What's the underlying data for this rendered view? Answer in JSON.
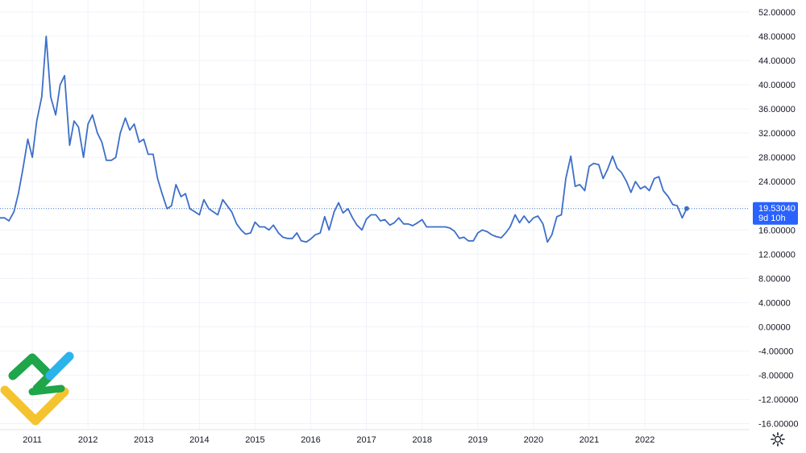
{
  "chart_data": {
    "type": "line",
    "title": "",
    "xlabel": "",
    "ylabel": "",
    "ylim": [
      -17.0,
      54.0
    ],
    "xlim": [
      2010.42,
      2023.88
    ],
    "y_ticks": [
      52,
      48,
      44,
      40,
      36,
      32,
      28,
      24,
      20,
      16,
      12,
      8,
      4,
      0,
      -4,
      -8,
      -12,
      -16
    ],
    "y_tick_labels": [
      "52.00000",
      "48.00000",
      "44.00000",
      "40.00000",
      "36.00000",
      "32.00000",
      "28.00000",
      "24.00000",
      "20.00000",
      "16.00000",
      "12.00000",
      "8.00000",
      "4.00000",
      "0.00000",
      "-4.00000",
      "-8.00000",
      "-12.00000",
      "-16.00000"
    ],
    "x_ticks": [
      2011,
      2012,
      2013,
      2014,
      2015,
      2016,
      2017,
      2018,
      2019,
      2020,
      2021,
      2022
    ],
    "x_tick_labels": [
      "2011",
      "2012",
      "2013",
      "2014",
      "2015",
      "2016",
      "2017",
      "2018",
      "2019",
      "2020",
      "2021",
      "2022"
    ],
    "grid": true,
    "series": [
      {
        "color": "#3d6fc8",
        "x": [
          2010.42,
          2010.5,
          2010.58,
          2010.67,
          2010.75,
          2010.83,
          2010.92,
          2011.0,
          2011.08,
          2011.17,
          2011.25,
          2011.33,
          2011.42,
          2011.5,
          2011.58,
          2011.67,
          2011.75,
          2011.83,
          2011.92,
          2012.0,
          2012.08,
          2012.17,
          2012.25,
          2012.33,
          2012.42,
          2012.5,
          2012.58,
          2012.67,
          2012.75,
          2012.83,
          2012.92,
          2013.0,
          2013.08,
          2013.17,
          2013.25,
          2013.33,
          2013.42,
          2013.5,
          2013.58,
          2013.67,
          2013.75,
          2013.83,
          2013.92,
          2014.0,
          2014.08,
          2014.17,
          2014.25,
          2014.33,
          2014.42,
          2014.5,
          2014.58,
          2014.67,
          2014.75,
          2014.83,
          2014.92,
          2015.0,
          2015.08,
          2015.17,
          2015.25,
          2015.33,
          2015.42,
          2015.5,
          2015.58,
          2015.67,
          2015.75,
          2015.83,
          2015.92,
          2016.0,
          2016.08,
          2016.17,
          2016.25,
          2016.33,
          2016.42,
          2016.5,
          2016.58,
          2016.67,
          2016.75,
          2016.83,
          2016.92,
          2017.0,
          2017.08,
          2017.17,
          2017.25,
          2017.33,
          2017.42,
          2017.5,
          2017.58,
          2017.67,
          2017.75,
          2017.83,
          2017.92,
          2018.0,
          2018.08,
          2018.17,
          2018.25,
          2018.33,
          2018.42,
          2018.5,
          2018.58,
          2018.67,
          2018.75,
          2018.83,
          2018.92,
          2019.0,
          2019.08,
          2019.17,
          2019.25,
          2019.33,
          2019.42,
          2019.5,
          2019.58,
          2019.67,
          2019.75,
          2019.83,
          2019.92,
          2020.0,
          2020.08,
          2020.17,
          2020.25,
          2020.33,
          2020.42,
          2020.5,
          2020.58,
          2020.67,
          2020.75,
          2020.83,
          2020.92,
          2021.0,
          2021.08,
          2021.17,
          2021.25,
          2021.33,
          2021.42,
          2021.5,
          2021.58,
          2021.67,
          2021.75,
          2021.83,
          2021.92,
          2022.0,
          2022.08,
          2022.17,
          2022.25,
          2022.33,
          2022.42,
          2022.5,
          2022.58,
          2022.67,
          2022.75
        ],
        "y": [
          18.0,
          18.0,
          17.5,
          19.0,
          22.0,
          26.0,
          31.0,
          28.0,
          34.0,
          38.0,
          48.0,
          38.0,
          35.0,
          40.0,
          41.5,
          30.0,
          34.0,
          33.0,
          28.0,
          33.5,
          35.0,
          32.0,
          30.5,
          27.5,
          27.5,
          28.0,
          32.0,
          34.5,
          32.5,
          33.5,
          30.5,
          31.0,
          28.5,
          28.5,
          24.5,
          22.0,
          19.5,
          20.0,
          23.5,
          21.5,
          22.0,
          19.5,
          19.0,
          18.5,
          21.0,
          19.5,
          19.0,
          18.5,
          21.0,
          20.0,
          19.0,
          17.0,
          16.0,
          15.3,
          15.5,
          17.3,
          16.5,
          16.5,
          16.0,
          16.8,
          15.5,
          14.8,
          14.6,
          14.6,
          15.5,
          14.2,
          14.0,
          14.5,
          15.2,
          15.5,
          18.2,
          16.0,
          19.0,
          20.5,
          18.8,
          19.5,
          18.0,
          16.8,
          16.0,
          17.8,
          18.5,
          18.5,
          17.5,
          17.7,
          16.8,
          17.2,
          18.0,
          17.0,
          17.0,
          16.7,
          17.2,
          17.7,
          16.5,
          16.5,
          16.5,
          16.5,
          16.5,
          16.3,
          15.8,
          14.6,
          14.8,
          14.2,
          14.2,
          15.5,
          16.0,
          15.7,
          15.2,
          14.9,
          14.7,
          15.5,
          16.5,
          18.5,
          17.2,
          18.3,
          17.2,
          18.0,
          18.3,
          17.0,
          14.0,
          15.2,
          18.2,
          18.5,
          24.5,
          28.2,
          23.2,
          23.5,
          22.5,
          26.5,
          27.0,
          26.8,
          24.5,
          26.0,
          28.2,
          26.2,
          25.5,
          24.0,
          22.2,
          24.0,
          22.8,
          23.2,
          22.5,
          24.5,
          24.8,
          22.5,
          21.5,
          20.2,
          20.0,
          18.0,
          19.5
        ]
      }
    ],
    "last_value": 19.5304,
    "last_value_label": "19.53040",
    "countdown_label": "9d 10h",
    "line_color": "#3d6fc8",
    "last_price_bg": "#2962ff"
  },
  "ui": {
    "settings_icon": "gear-icon",
    "logo_icon": "brand-logo-icon",
    "grid_color": "#f0f3fa",
    "axis_line_color": "#e0e3eb"
  }
}
